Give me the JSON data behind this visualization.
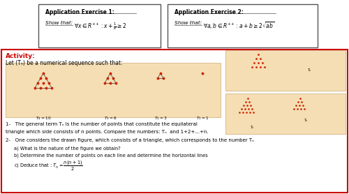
{
  "background_color": "#ffffff",
  "box1_title": "Application Exercise 1:",
  "box1_line1": "Show that:",
  "box2_title": "Application Exercise 2:",
  "box2_line1": "Show that:",
  "activity_label": "Activity:",
  "activity_color": "#cc0000",
  "seq_text": "Let (Tₙ) be a numerical sequence such that:",
  "q1_line1": "1-   The general term Tₙ is the number of points that constitute the equilateral",
  "q1_line2": "triangle which side consists of n points. Compare the numbers: Tₙ  and 1+2+...+n.",
  "q2_line1": "2-   One considers the drawn figure, which consists of a triangle, which corresponds to the number Tₙ",
  "q2a": "a) What is the nature of the figure we obtain?",
  "q2b": "b) Determine the number of points on each line and determine the horizontal lines",
  "img_color": "#f5deb3",
  "border_color": "#cc0000",
  "dot_color": "#cc2200",
  "line_color": "#555555"
}
